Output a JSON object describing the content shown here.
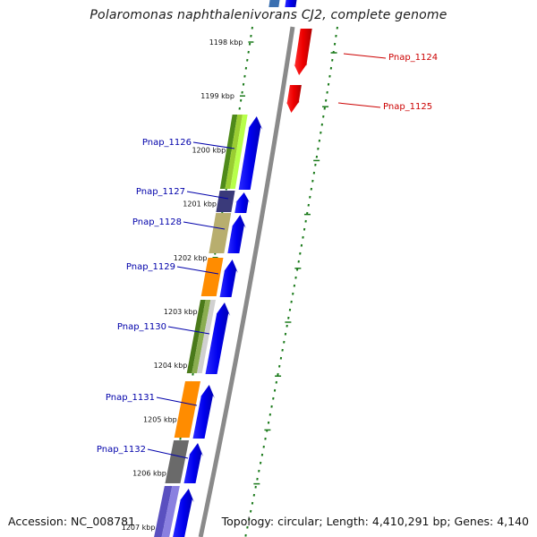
{
  "title": "Polaromonas naphthalenivorans CJ2, complete genome",
  "accession": "Accession: NC_008781",
  "summary": "Topology: circular; Length: 4,410,291 bp; Genes: 4,140",
  "ticks": [
    "1198 kbp",
    "1199 kbp",
    "1200 kbp",
    "1201 kbp",
    "1202 kbp",
    "1203 kbp",
    "1204 kbp",
    "1205 kbp",
    "1206 kbp",
    "1207 kbp"
  ],
  "genes_reverse": [
    {
      "label": "Pnap_1124",
      "color": "#cc0000"
    },
    {
      "label": "Pnap_1125",
      "color": "#cc0000"
    }
  ],
  "genes_forward": [
    {
      "label": "Pnap_1126",
      "color": "#0000aa"
    },
    {
      "label": "Pnap_1127",
      "color": "#0000aa"
    },
    {
      "label": "Pnap_1128",
      "color": "#0000aa"
    },
    {
      "label": "Pnap_1129",
      "color": "#0000aa"
    },
    {
      "label": "Pnap_1130",
      "color": "#0000aa"
    },
    {
      "label": "Pnap_1131",
      "color": "#0000aa"
    },
    {
      "label": "Pnap_1132",
      "color": "#0000aa"
    }
  ],
  "colors": {
    "backbone": "#8a8a8a",
    "forward_cds": "#0000ee",
    "reverse_cds": "#ee0000",
    "tick_marks": "#1a7a1a"
  }
}
